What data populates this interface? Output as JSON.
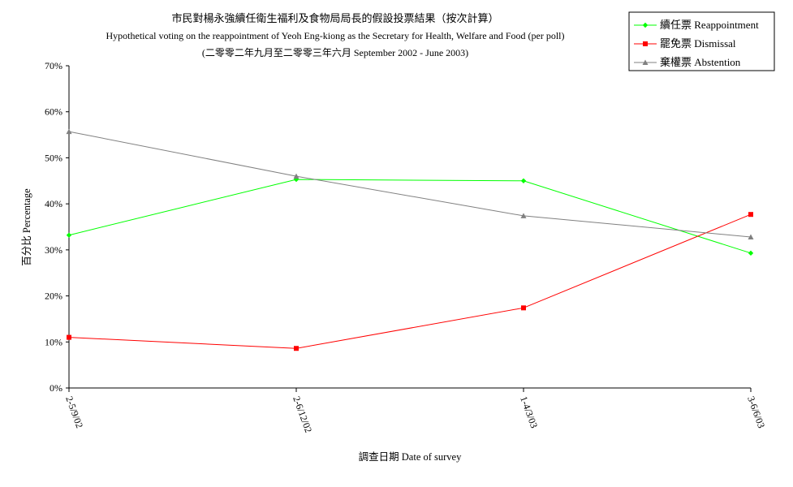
{
  "chart_data": {
    "type": "line",
    "title": "市民對楊永強續任衛生福利及食物局局長的假設投票結果（按次計算）",
    "subtitle": "Hypothetical voting on the reappointment of Yeoh Eng-kiong as the Secretary for Health, Welfare and Food (per poll)",
    "subtitle2": "(二零零二年九月至二零零三年六月 September 2002 - June 2003)",
    "xlabel": "調查日期 Date of survey",
    "ylabel": "百分比 Percentage",
    "categories": [
      "2-5/9/02",
      "2-6/12/02",
      "1-4/3/03",
      "3-6/6/03"
    ],
    "ylim": [
      0,
      70
    ],
    "yticks": [
      "0%",
      "10%",
      "20%",
      "30%",
      "40%",
      "50%",
      "60%",
      "70%"
    ],
    "grid": false,
    "legend_position": "top-right",
    "series": [
      {
        "name": "續任票 Reappointment",
        "color": "#00ff00",
        "marker": "diamond",
        "values": [
          33.2,
          45.3,
          45.0,
          29.3
        ]
      },
      {
        "name": "罷免票 Dismissal",
        "color": "#ff0000",
        "marker": "square",
        "values": [
          11.0,
          8.6,
          17.4,
          37.7
        ]
      },
      {
        "name": "棄權票 Abstention",
        "color": "#808080",
        "marker": "triangle",
        "values": [
          55.7,
          46.0,
          37.4,
          32.8
        ]
      }
    ]
  }
}
